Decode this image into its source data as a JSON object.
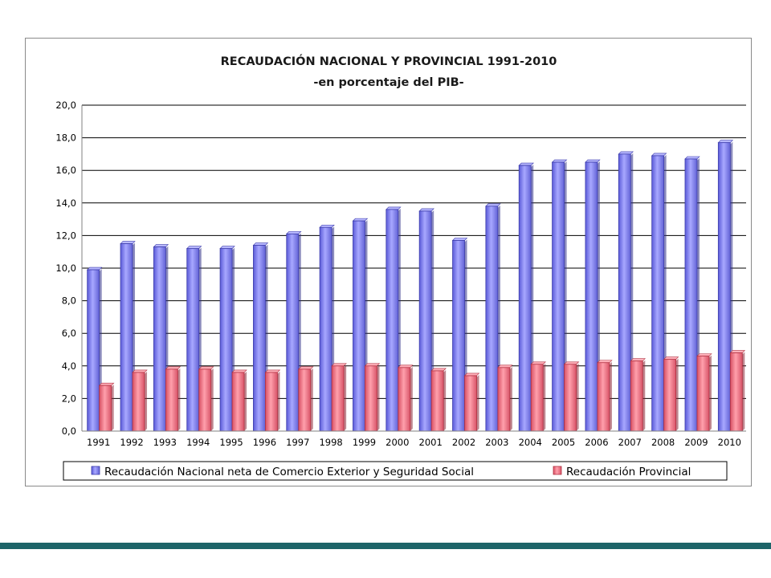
{
  "colors": {
    "nacional": "#8b8bf0",
    "nacional_dark": "#3c3caa",
    "provincial": "#f07888",
    "provincial_dark": "#b03040",
    "band": "#1d6468"
  },
  "chart_data": {
    "type": "bar",
    "title": "RECAUDACIÓN NACIONAL Y PROVINCIAL 1991-2010",
    "subtitle": "-en porcentaje del PIB-",
    "xlabel": "",
    "ylabel": "",
    "ylim": [
      0,
      20
    ],
    "yticks": [
      "0,0",
      "2,0",
      "4,0",
      "6,0",
      "8,0",
      "10,0",
      "12,0",
      "14,0",
      "16,0",
      "18,0",
      "20,0"
    ],
    "grid": true,
    "legend_position": "bottom",
    "categories": [
      "1991",
      "1992",
      "1993",
      "1994",
      "1995",
      "1996",
      "1997",
      "1998",
      "1999",
      "2000",
      "2001",
      "2002",
      "2003",
      "2004",
      "2005",
      "2006",
      "2007",
      "2008",
      "2009",
      "2010"
    ],
    "series": [
      {
        "name": "Recaudación Nacional neta de Comercio Exterior y Seguridad Social",
        "values": [
          9.9,
          11.5,
          11.3,
          11.2,
          11.2,
          11.4,
          12.1,
          12.5,
          12.9,
          13.6,
          13.5,
          11.7,
          13.8,
          16.3,
          16.5,
          16.5,
          17.0,
          16.9,
          16.7,
          17.7
        ]
      },
      {
        "name": "Recaudación Provincial",
        "values": [
          2.8,
          3.6,
          3.8,
          3.8,
          3.6,
          3.6,
          3.8,
          4.0,
          4.0,
          3.9,
          3.7,
          3.4,
          3.9,
          4.1,
          4.1,
          4.2,
          4.3,
          4.4,
          4.6,
          4.8
        ]
      }
    ]
  }
}
